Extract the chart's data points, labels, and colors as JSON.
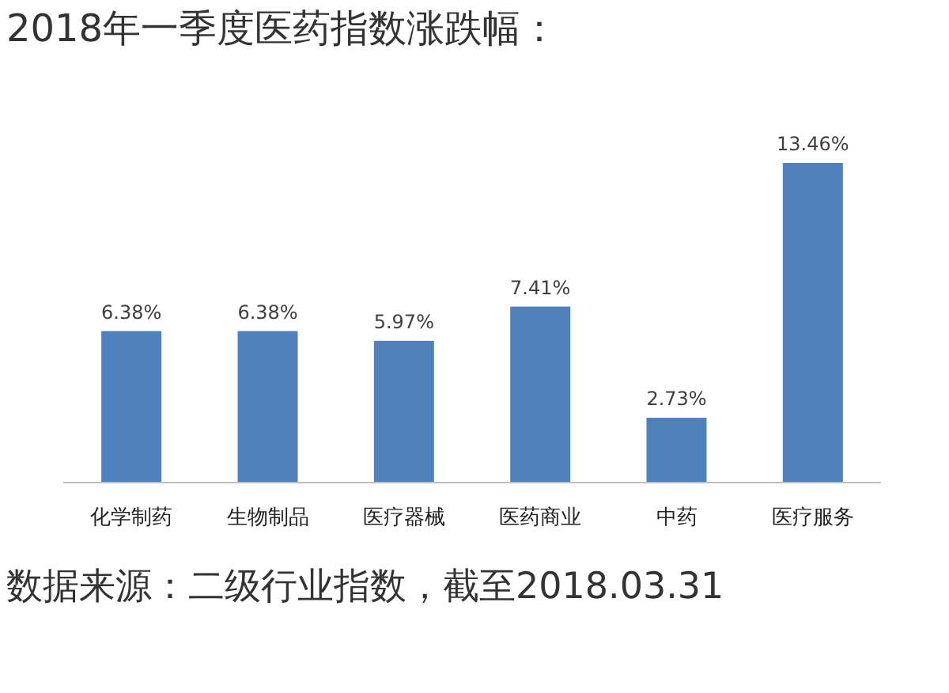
{
  "chart_data": {
    "type": "bar",
    "title": "2018年一季度医药指数涨跌幅：",
    "categories": [
      "化学制药",
      "生物制品",
      "医疗器械",
      "医药商业",
      "中药",
      "医疗服务"
    ],
    "values": [
      6.38,
      6.38,
      5.97,
      7.41,
      2.73,
      13.46
    ],
    "value_labels": [
      "6.38%",
      "6.38%",
      "5.97%",
      "7.41%",
      "2.73%",
      "13.46%"
    ],
    "color": "#4f81bd",
    "annotations": [
      "数据来源：二级行业指数，截至2018.03.31"
    ]
  }
}
